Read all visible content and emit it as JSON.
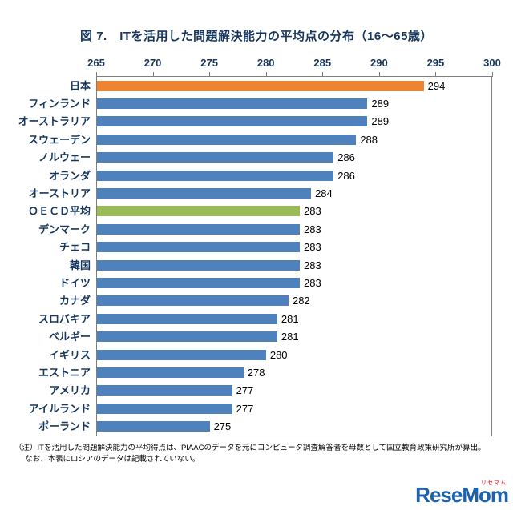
{
  "title": "図 7.　ITを活用した問題解決能力の平均点の分布（16～65歳）",
  "chart_data": {
    "type": "bar",
    "orientation": "horizontal",
    "title": "図 7.　ITを活用した問題解決能力の平均点の分布（16～65歳）",
    "categories": [
      "日本",
      "フィンランド",
      "オーストラリア",
      "スウェーデン",
      "ノルウェー",
      "オランダ",
      "オーストリア",
      "ＯＥＣＤ平均",
      "デンマーク",
      "チェコ",
      "韓国",
      "ドイツ",
      "カナダ",
      "スロバキア",
      "ベルギー",
      "イギリス",
      "エストニア",
      "アメリカ",
      "アイルランド",
      "ポーランド"
    ],
    "values": [
      294,
      289,
      289,
      288,
      286,
      286,
      284,
      283,
      283,
      283,
      283,
      283,
      282,
      281,
      281,
      280,
      278,
      277,
      277,
      275
    ],
    "xlim": [
      265,
      300
    ],
    "x_ticks": [
      265,
      270,
      275,
      280,
      285,
      290,
      295,
      300
    ],
    "axis_position": "top",
    "grid": false,
    "legend": "none",
    "default_color": "#4f81bd",
    "highlight_colors": {
      "0": "#ee8432",
      "7": "#9bbb59"
    }
  },
  "note": {
    "line1": "（注）ITを活用した問題解決能力の平均得点は、PIAACのデータを元にコンピュータ調査解答者を母数として国立教育政策研究所が算出。",
    "line2": "なお、本表にロシアのデータは記載されていない。"
  },
  "watermark": {
    "text": "ReseMom",
    "sub": "リセマム"
  }
}
